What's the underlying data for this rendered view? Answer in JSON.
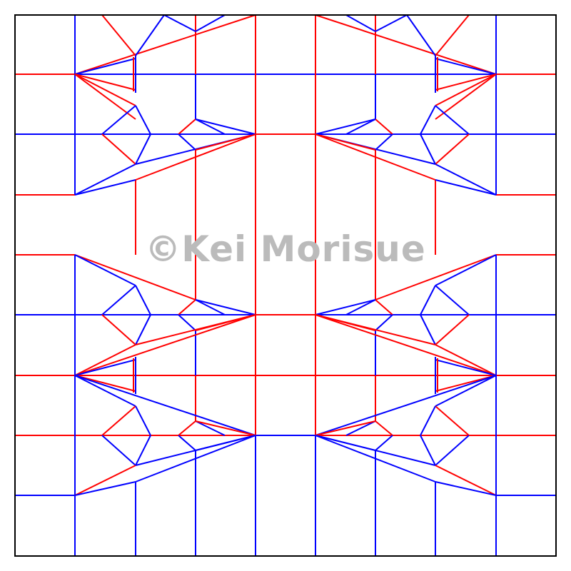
{
  "watermark_text": "©Kei Morisue",
  "colors": {
    "mountain": "#ff0000",
    "valley": "#0000ff",
    "border": "#000000",
    "background": "#ffffff",
    "watermark": "#bbbbbb"
  }
}
